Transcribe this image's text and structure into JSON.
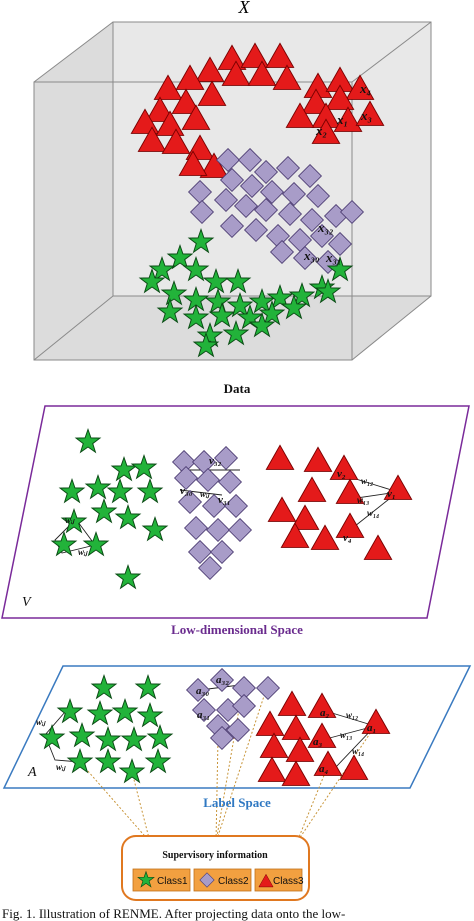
{
  "panel_data": {
    "title": "X",
    "caption": "Data"
  },
  "panel_v": {
    "corner_label": "V",
    "caption": "Low-dimensional Space"
  },
  "panel_a": {
    "corner_label": "A",
    "caption": "Label Space"
  },
  "data_points": {
    "x4": "x₄",
    "x1": "x₁",
    "x3": "x₃",
    "x2": "x₂",
    "x32": "x₃₂",
    "x30": "x₃₀",
    "x31": "x₃₁"
  },
  "v_points": {
    "v2": "v₂",
    "v1": "v₁",
    "v4": "v₄",
    "v32": "v₃₂",
    "v30": "v₃₀",
    "v31": "v₃₁",
    "w12": "w₁₂",
    "w13": "w₁₃",
    "w14": "w₁₄",
    "w": "wᵢⱼ",
    "wi": "wᵢⱼ",
    "wij": "wᵢⱼ"
  },
  "a_points": {
    "a30": "a₃₀",
    "a32": "a₃₂",
    "a31": "a₃₁",
    "a2": "a₂",
    "a1": "a₁",
    "a3": "a₃",
    "a4": "a₄",
    "w12": "w₁₂",
    "w13": "w₁₃",
    "w14": "w₁₄",
    "wi": "wᵢⱼ",
    "wij": "wᵢⱼ"
  },
  "legend": {
    "title": "Supervisory information",
    "items": [
      "Class1",
      "Class2",
      "Class3"
    ]
  },
  "footer_text": "Fig. 1.   Illustration of RENME. After projecting data onto the low-"
}
